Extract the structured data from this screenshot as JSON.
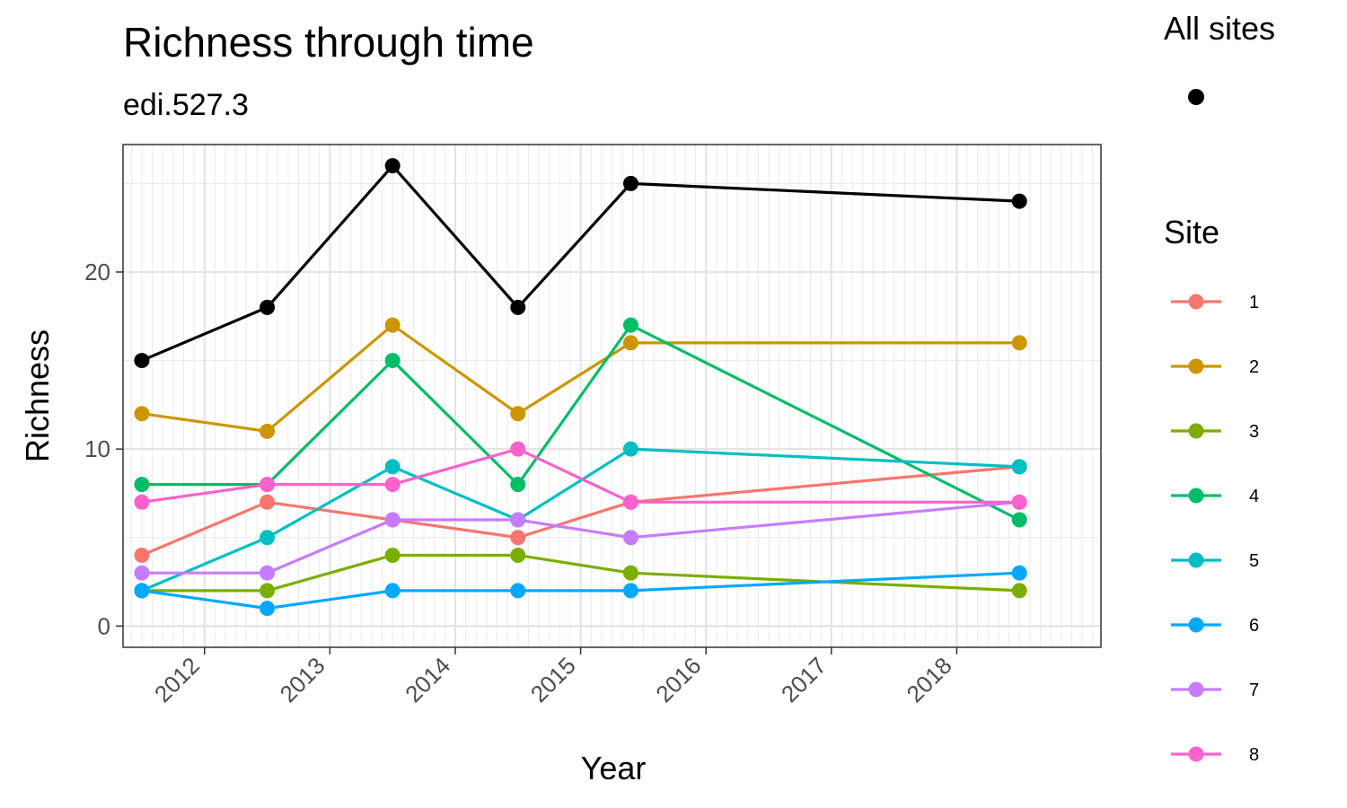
{
  "chart_data": {
    "type": "line",
    "title": "Richness through time",
    "subtitle": "edi.527.3",
    "xlabel": "Year",
    "ylabel": "Richness",
    "x_ticks": [
      "2012",
      "2013",
      "2014",
      "2015",
      "2016",
      "2017",
      "2018"
    ],
    "y_ticks": [
      "0",
      "10",
      "20"
    ],
    "xlim": [
      2011.35,
      2019.15
    ],
    "ylim": [
      -1.2,
      27.2
    ],
    "grid": true,
    "x": [
      2011.5,
      2012.5,
      2013.5,
      2014.5,
      2015.4,
      2018.5
    ],
    "all_sites": {
      "name": "All sites",
      "color": "#000000",
      "values": [
        15,
        18,
        26,
        18,
        25,
        24
      ]
    },
    "legend_title": "Site",
    "series": [
      {
        "name": "1",
        "color": "#F8766D",
        "values": [
          4,
          7,
          6,
          5,
          7,
          9
        ]
      },
      {
        "name": "2",
        "color": "#CD9600",
        "values": [
          12,
          11,
          17,
          12,
          16,
          16
        ]
      },
      {
        "name": "3",
        "color": "#7CAE00",
        "values": [
          2,
          2,
          4,
          4,
          3,
          2
        ]
      },
      {
        "name": "4",
        "color": "#00BE67",
        "values": [
          8,
          8,
          15,
          8,
          17,
          6
        ]
      },
      {
        "name": "5",
        "color": "#00BFC4",
        "values": [
          2,
          5,
          9,
          6,
          10,
          9
        ]
      },
      {
        "name": "6",
        "color": "#00A9FF",
        "values": [
          2,
          1,
          2,
          2,
          2,
          3
        ]
      },
      {
        "name": "7",
        "color": "#C77CFF",
        "values": [
          3,
          3,
          6,
          6,
          5,
          7
        ]
      },
      {
        "name": "8",
        "color": "#FF61CC",
        "values": [
          7,
          8,
          8,
          10,
          7,
          7
        ]
      }
    ]
  }
}
